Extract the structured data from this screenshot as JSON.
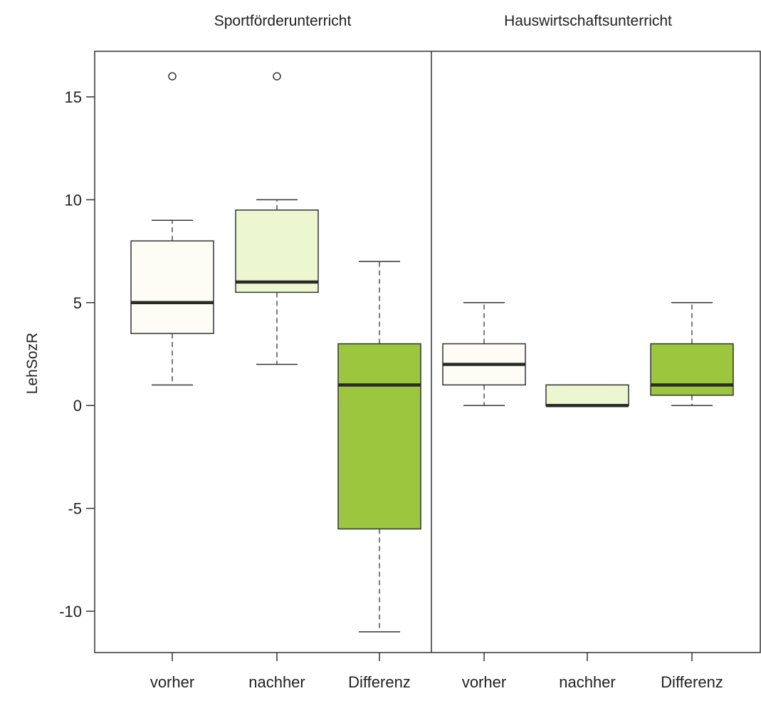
{
  "chart_data": {
    "type": "boxplot",
    "ylabel": "LehSozR",
    "ylim": [
      -12,
      17
    ],
    "yticks": [
      -10,
      -5,
      0,
      5,
      10,
      15
    ],
    "grid": false,
    "panels": [
      {
        "title": "Sportförderunterricht",
        "boxes": [
          {
            "label": "vorher",
            "min": 1,
            "q1": 3.5,
            "median": 5,
            "q3": 8,
            "max": 9,
            "outliers": [
              16
            ],
            "fill": "#fdfdf6"
          },
          {
            "label": "nachher",
            "min": 2,
            "q1": 5.5,
            "median": 6,
            "q3": 9.5,
            "max": 10,
            "outliers": [
              16
            ],
            "fill": "#ecf6cf"
          },
          {
            "label": "Differenz",
            "min": -11,
            "q1": -6,
            "median": 1,
            "q3": 3,
            "max": 7,
            "outliers": [],
            "fill": "#9bc63d"
          }
        ]
      },
      {
        "title": "Hauswirtschaftsunterricht",
        "boxes": [
          {
            "label": "vorher",
            "min": 0,
            "q1": 1,
            "median": 2,
            "q3": 3,
            "max": 5,
            "outliers": [],
            "fill": "#fdfdf6"
          },
          {
            "label": "nachher",
            "min": 0,
            "q1": 0,
            "median": 0,
            "q3": 1,
            "max": 1,
            "outliers": [],
            "fill": "#ecf6cf"
          },
          {
            "label": "Differenz",
            "min": 0,
            "q1": 0.5,
            "median": 1,
            "q3": 3,
            "max": 5,
            "outliers": [],
            "fill": "#9bc63d"
          }
        ]
      }
    ]
  }
}
